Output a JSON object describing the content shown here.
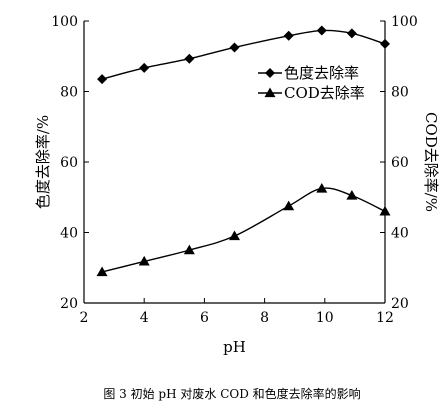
{
  "chart_data": {
    "type": "line",
    "xlabel": "pH",
    "ylabel_left": "色度去除率/%",
    "ylabel_right": "COD去除率/%",
    "xlim": [
      2,
      12
    ],
    "ylim": [
      20,
      100
    ],
    "x_ticks": [
      2,
      4,
      6,
      8,
      10,
      12
    ],
    "y_ticks": [
      20,
      40,
      60,
      80,
      100
    ],
    "legend_placement": "top-right",
    "grid": false,
    "series": [
      {
        "name": "色度去除率",
        "marker": "diamond",
        "x": [
          2.6,
          4.0,
          5.5,
          7.0,
          8.8,
          9.9,
          10.9,
          12.0
        ],
        "y": [
          83.5,
          86.7,
          89.3,
          92.5,
          95.8,
          97.3,
          96.5,
          93.5
        ]
      },
      {
        "name": "COD去除率",
        "marker": "triangle",
        "x": [
          2.6,
          4.0,
          5.5,
          7.0,
          8.8,
          9.9,
          10.9,
          12.0
        ],
        "y": [
          28.8,
          31.8,
          35.0,
          39.0,
          47.5,
          52.5,
          50.5,
          46.0
        ]
      }
    ],
    "caption": "图 3   初始 pH 对废水 COD 和色度去除率的影响"
  }
}
